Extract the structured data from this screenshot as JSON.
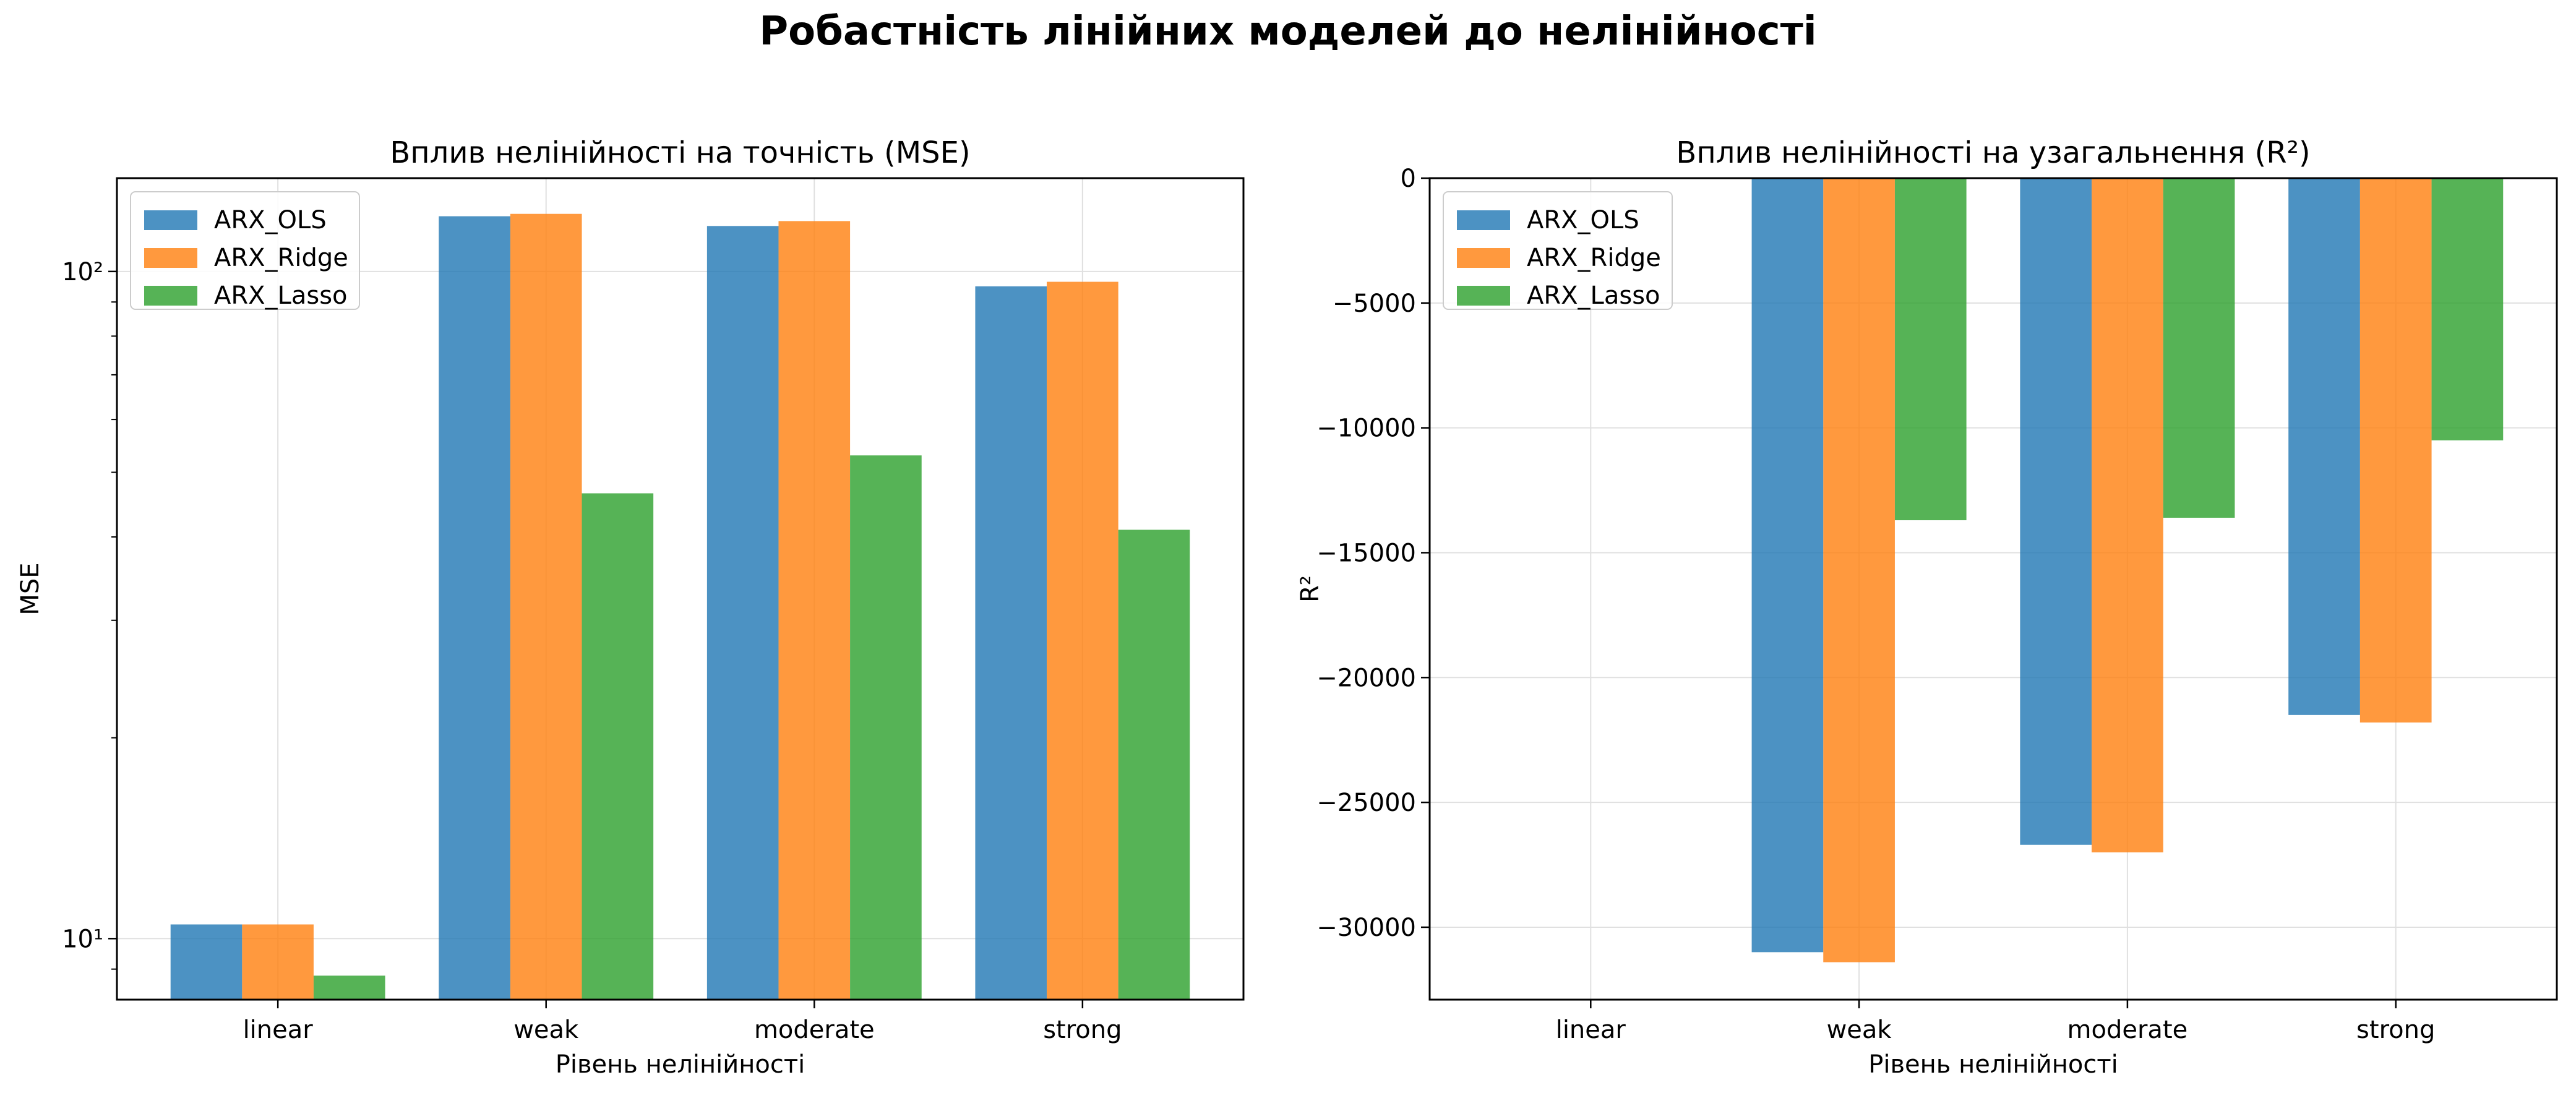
{
  "suptitle": "Робастність лінійних моделей до нелінійності",
  "colors": {
    "ARX_OLS": "#1f77b4",
    "ARX_Ridge": "#ff7f0e",
    "ARX_Lasso": "#2ca02c",
    "grid": "#e0e0e0"
  },
  "chart_data": [
    {
      "type": "bar",
      "title": "Вплив нелінійності на точність (MSE)",
      "xlabel": "Рівень нелінійності",
      "ylabel": "MSE",
      "yscale": "log",
      "ylim": [
        8.1,
        138
      ],
      "yticks": [
        10,
        100
      ],
      "ytick_labels": [
        "10¹",
        "10²"
      ],
      "categories": [
        "linear",
        "weak",
        "moderate",
        "strong"
      ],
      "series": [
        {
          "name": "ARX_OLS",
          "color": "#1f77b4",
          "values": [
            10.5,
            121,
            117,
            95
          ]
        },
        {
          "name": "ARX_Ridge",
          "color": "#ff7f0e",
          "values": [
            10.5,
            122,
            119,
            96.5
          ]
        },
        {
          "name": "ARX_Lasso",
          "color": "#2ca02c",
          "values": [
            8.8,
            46.5,
            53,
            41
          ]
        }
      ],
      "grid": true,
      "legend": "top-left"
    },
    {
      "type": "bar",
      "title": "Вплив нелінійності на узагальнення (R²)",
      "xlabel": "Рівень нелінійності",
      "ylabel": "R²",
      "yscale": "linear",
      "ylim": [
        -32900,
        0
      ],
      "yticks": [
        0,
        -5000,
        -10000,
        -15000,
        -20000,
        -25000,
        -30000
      ],
      "ytick_labels": [
        "0",
        "−5000",
        "−10000",
        "−15000",
        "−20000",
        "−25000",
        "−30000"
      ],
      "categories": [
        "linear",
        "weak",
        "moderate",
        "strong"
      ],
      "series": [
        {
          "name": "ARX_OLS",
          "color": "#1f77b4",
          "values": [
            0,
            -31000,
            -26700,
            -21500
          ]
        },
        {
          "name": "ARX_Ridge",
          "color": "#ff7f0e",
          "values": [
            0,
            -31400,
            -27000,
            -21800
          ]
        },
        {
          "name": "ARX_Lasso",
          "color": "#2ca02c",
          "values": [
            0,
            -13700,
            -13600,
            -10500
          ]
        }
      ],
      "grid": true,
      "legend": "top-left"
    }
  ]
}
